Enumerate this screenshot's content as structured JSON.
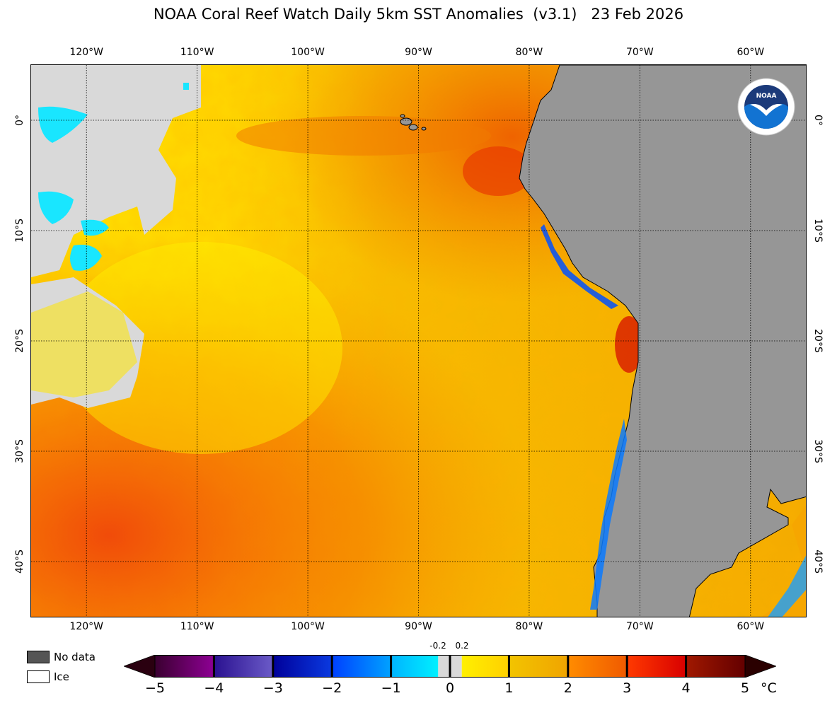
{
  "title": "NOAA Coral Reef Watch Daily 5km SST Anomalies  (v3.1)   23 Feb 2026",
  "map": {
    "lon_labels": [
      "120°W",
      "110°W",
      "100°W",
      "90°W",
      "80°W",
      "70°W",
      "60°W"
    ],
    "lat_labels": [
      "0°",
      "10°S",
      "20°S",
      "30°S",
      "40°S"
    ],
    "lon_values": [
      -120,
      -110,
      -100,
      -90,
      -80,
      -70,
      -60
    ],
    "lat_values": [
      0,
      -10,
      -20,
      -30,
      -40
    ],
    "lon_range": [
      -125,
      -55
    ],
    "lat_range": [
      5,
      -45
    ],
    "colors": {
      "land": "#969696",
      "no_data_ocean": "#d9d9d9",
      "coast": "#000000"
    }
  },
  "logo": {
    "text": "NOAA",
    "ring_text": "NATIONAL OCEANIC AND ATMOSPHERIC ADMINISTRATION · U.S. DEPARTMENT OF COMMERCE"
  },
  "legend": {
    "no_data": {
      "label": "No data",
      "color": "#555555"
    },
    "ice": {
      "label": "Ice",
      "color": "#ffffff"
    }
  },
  "colorbar": {
    "ticks": [
      "−5",
      "−4",
      "−3",
      "−2",
      "−1",
      "0",
      "1",
      "2",
      "3",
      "4",
      "5"
    ],
    "small_ticks": [
      "-0.2",
      "0.2"
    ],
    "unit": "°C",
    "range": [
      -5,
      5
    ],
    "segments": [
      {
        "from": -5,
        "to": -4,
        "c0": "#3a0030",
        "c1": "#8e0094"
      },
      {
        "from": -4,
        "to": -3,
        "c0": "#2a1190",
        "c1": "#6b5bc8"
      },
      {
        "from": -3,
        "to": -2,
        "c0": "#00009a",
        "c1": "#0a3ae0"
      },
      {
        "from": -2,
        "to": -1,
        "c0": "#0040ff",
        "c1": "#00a2ff"
      },
      {
        "from": -1,
        "to": -0.2,
        "c0": "#00b4ff",
        "c1": "#00f0ff"
      },
      {
        "from": -0.2,
        "to": 0.2,
        "c0": "#d9d9d9",
        "c1": "#d9d9d9"
      },
      {
        "from": 0.2,
        "to": 1,
        "c0": "#fff000",
        "c1": "#ffd000"
      },
      {
        "from": 1,
        "to": 2,
        "c0": "#f2c400",
        "c1": "#f0a400"
      },
      {
        "from": 2,
        "to": 3,
        "c0": "#ff8c00",
        "c1": "#f05a00"
      },
      {
        "from": 3,
        "to": 4,
        "c0": "#ff3a00",
        "c1": "#d80000"
      },
      {
        "from": 4,
        "to": 5,
        "c0": "#a01800",
        "c1": "#640000"
      }
    ],
    "end_low": "#2a0010",
    "end_high": "#2a0000"
  }
}
